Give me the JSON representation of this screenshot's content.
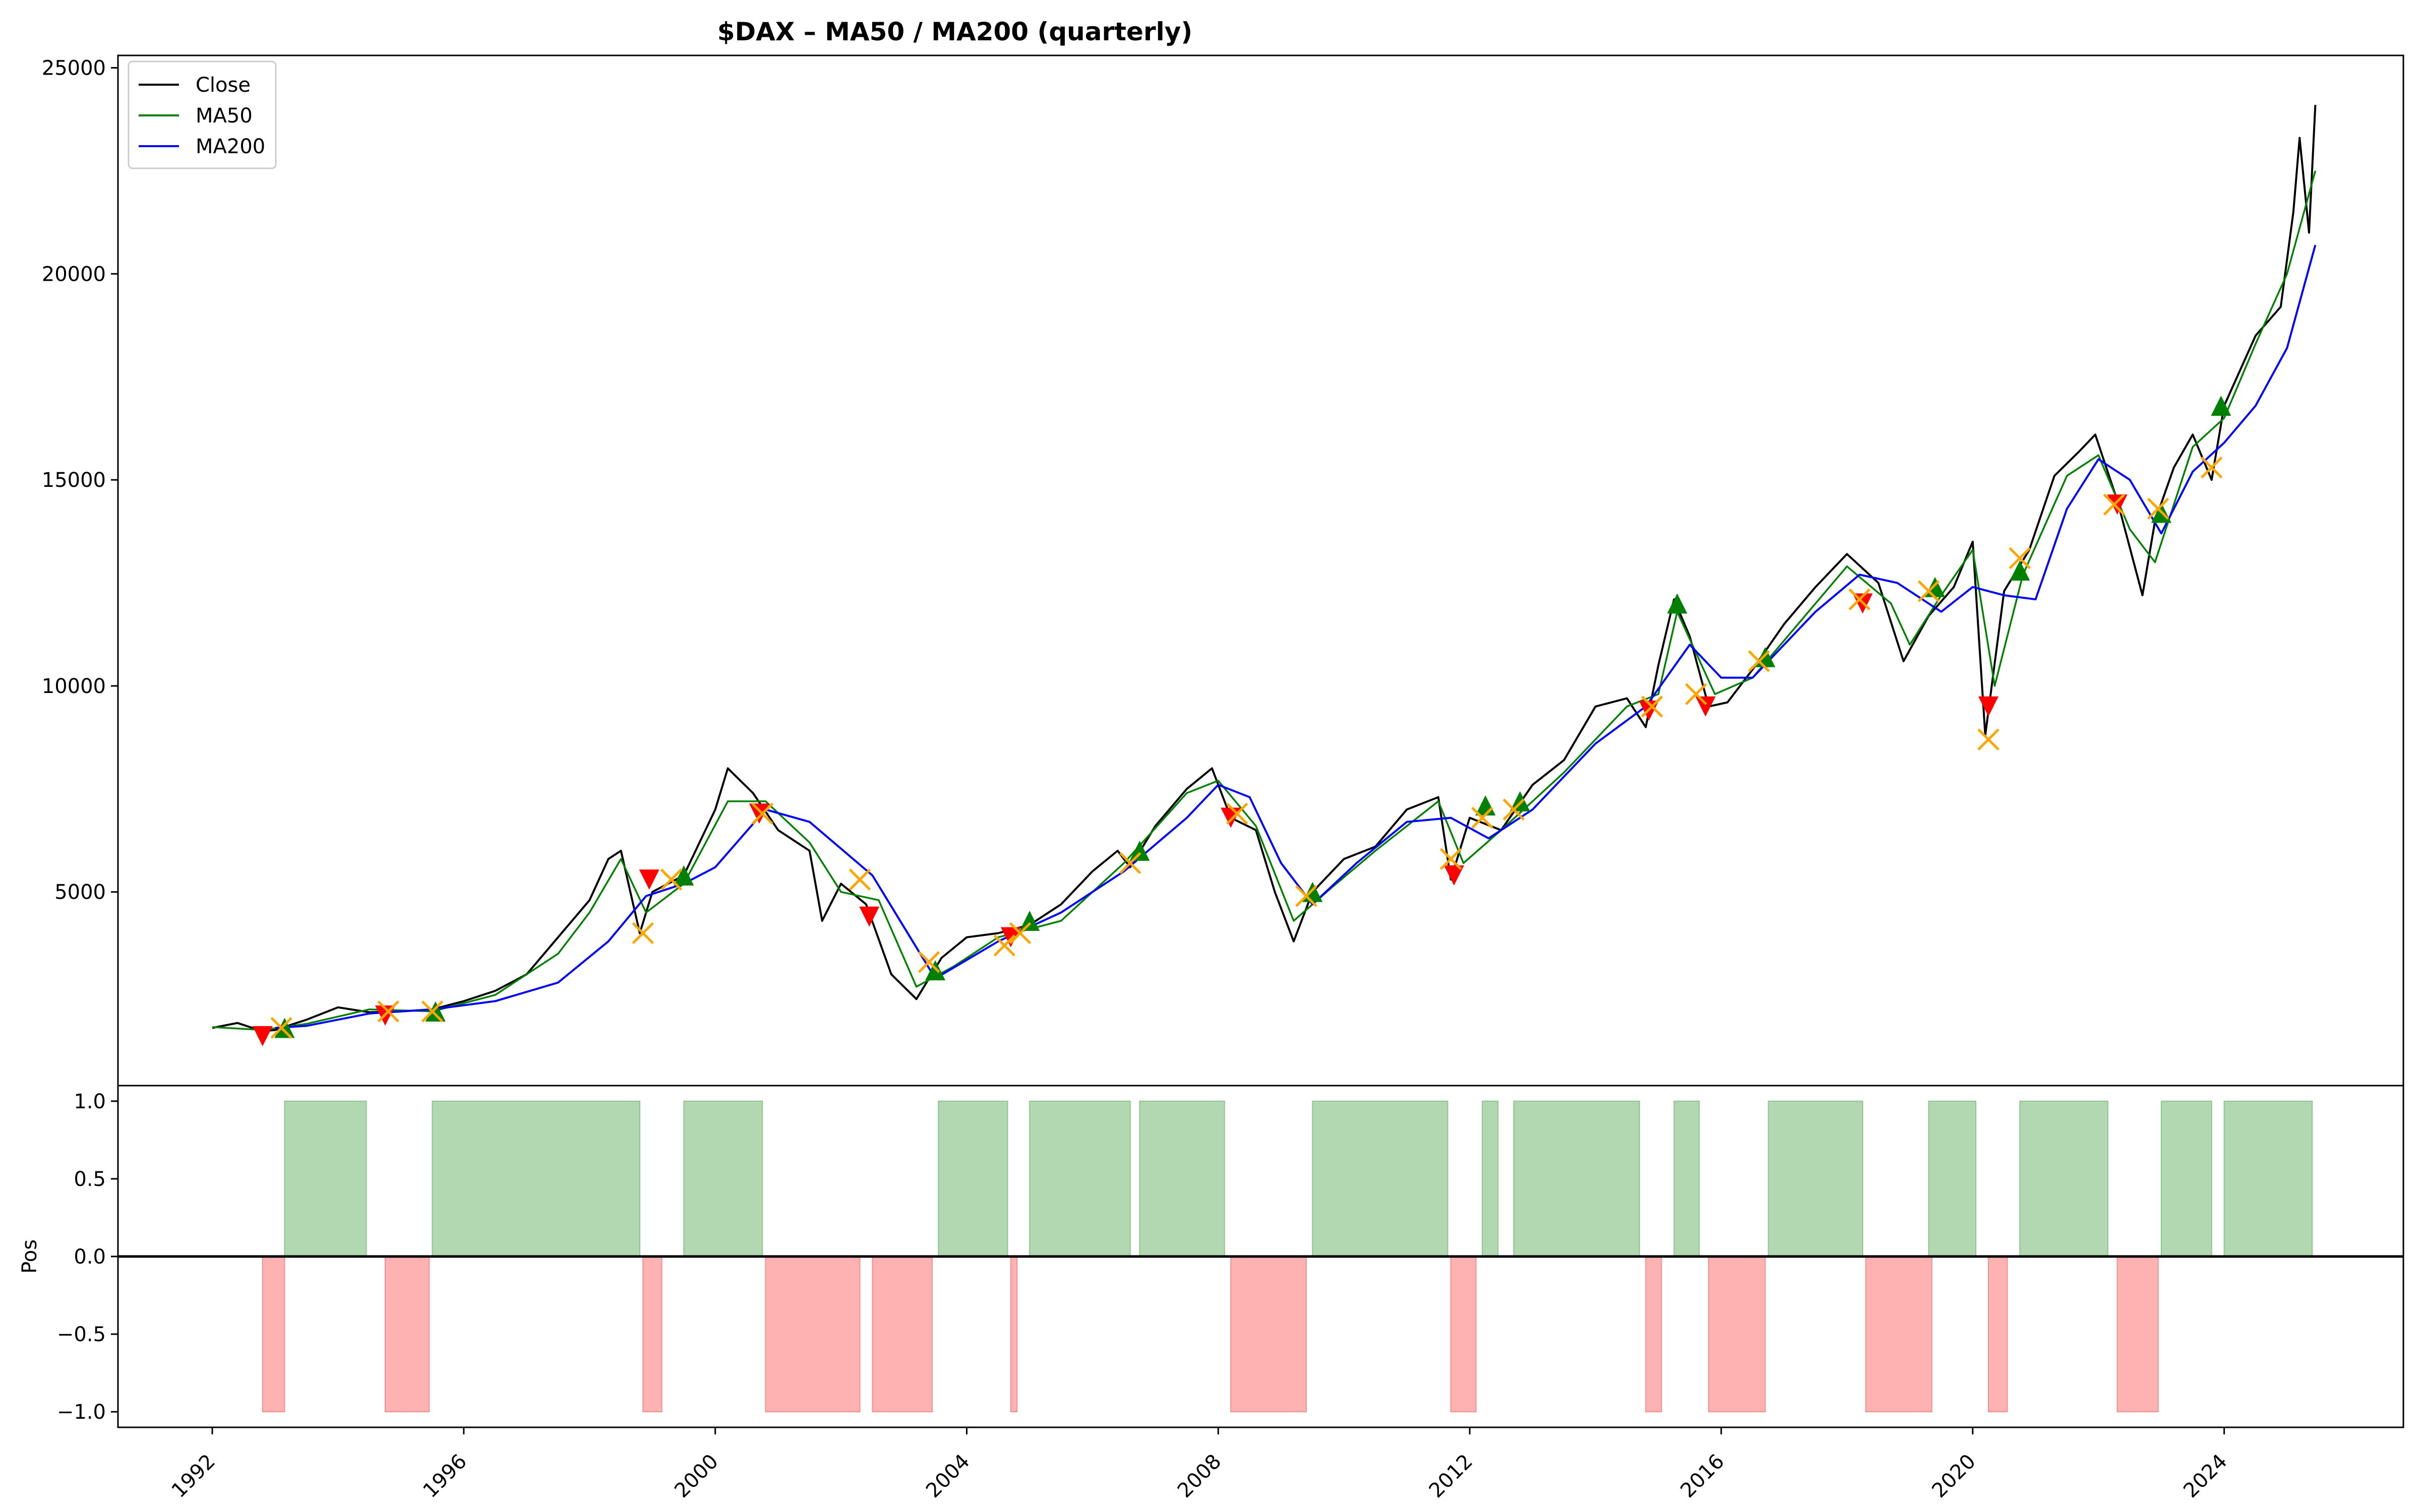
{
  "chart_data": [
    {
      "type": "line",
      "title": "$DAX – MA50 / MA200 (quarterly)",
      "xlabel": "",
      "ylabel": "",
      "xlim": [
        1990.5,
        2026.85
      ],
      "ylim": [
        300,
        25300
      ],
      "x_ticks": [
        1992,
        1996,
        2000,
        2004,
        2008,
        2012,
        2016,
        2020,
        2024
      ],
      "x_tick_labels": [
        "1992",
        "1996",
        "2000",
        "2004",
        "2008",
        "2012",
        "2016",
        "2020",
        "2024"
      ],
      "y_ticks": [
        5000,
        10000,
        15000,
        20000,
        25000
      ],
      "y_tick_labels": [
        "5000",
        "10000",
        "15000",
        "20000",
        "25000"
      ],
      "legend": {
        "placement": "top-left",
        "entries": [
          "Close",
          "MA50",
          "MA200"
        ]
      },
      "grid": false,
      "series": [
        {
          "name": "Close",
          "color": "#000000",
          "x": [
            1992.0,
            1992.4,
            1992.8,
            1993.0,
            1993.5,
            1994.0,
            1994.5,
            1995.0,
            1995.5,
            1996.0,
            1996.5,
            1997.0,
            1997.5,
            1998.0,
            1998.3,
            1998.5,
            1998.8,
            1999.0,
            1999.5,
            2000.0,
            2000.2,
            2000.6,
            2001.0,
            2001.5,
            2001.7,
            2002.0,
            2002.4,
            2002.8,
            2003.2,
            2003.6,
            2004.0,
            2004.5,
            2005.0,
            2005.5,
            2006.0,
            2006.4,
            2006.6,
            2007.0,
            2007.5,
            2007.9,
            2008.2,
            2008.6,
            2008.9,
            2009.2,
            2009.5,
            2010.0,
            2010.5,
            2011.0,
            2011.5,
            2011.7,
            2012.0,
            2012.5,
            2013.0,
            2013.5,
            2014.0,
            2014.5,
            2014.8,
            2015.0,
            2015.25,
            2015.5,
            2015.8,
            2016.1,
            2016.5,
            2017.0,
            2017.5,
            2018.0,
            2018.5,
            2018.9,
            2019.3,
            2019.7,
            2020.0,
            2020.2,
            2020.5,
            2020.9,
            2021.3,
            2021.7,
            2021.95,
            2022.3,
            2022.7,
            2022.9,
            2023.2,
            2023.5,
            2023.8,
            2024.0,
            2024.5,
            2024.9,
            2025.1,
            2025.2,
            2025.35,
            2025.45
          ],
          "y": [
            1700,
            1820,
            1620,
            1650,
            1900,
            2200,
            2080,
            2100,
            2150,
            2350,
            2600,
            3000,
            3900,
            4800,
            5800,
            6000,
            4000,
            5000,
            5400,
            7000,
            8000,
            7400,
            6500,
            6000,
            4300,
            5200,
            4700,
            3000,
            2400,
            3400,
            3900,
            4000,
            4200,
            4700,
            5500,
            6000,
            5600,
            6600,
            7500,
            8000,
            6800,
            6500,
            5000,
            3800,
            5000,
            5800,
            6100,
            7000,
            7300,
            5300,
            6800,
            6500,
            7600,
            8200,
            9500,
            9700,
            9000,
            10500,
            12100,
            11200,
            9500,
            9600,
            10400,
            11500,
            12400,
            13200,
            12500,
            10600,
            11700,
            12400,
            13500,
            8800,
            12300,
            13300,
            15100,
            15700,
            16100,
            14500,
            12200,
            14000,
            15300,
            16100,
            15000,
            16800,
            18500,
            19200,
            21500,
            23300,
            21000,
            24100
          ]
        },
        {
          "name": "MA50",
          "color": "#008000",
          "x": [
            1992.0,
            1992.8,
            1993.5,
            1994.5,
            1995.5,
            1996.5,
            1997.5,
            1998.0,
            1998.5,
            1998.9,
            1999.5,
            2000.2,
            2000.8,
            2001.5,
            2002.0,
            2002.6,
            2003.2,
            2003.8,
            2004.5,
            2005.5,
            2006.5,
            2007.5,
            2008.0,
            2008.6,
            2009.2,
            2009.8,
            2010.5,
            2011.5,
            2011.9,
            2012.5,
            2013.5,
            2014.5,
            2015.0,
            2015.3,
            2015.9,
            2016.5,
            2017.5,
            2018.0,
            2018.7,
            2019.0,
            2019.5,
            2020.0,
            2020.35,
            2020.8,
            2021.5,
            2022.0,
            2022.5,
            2022.9,
            2023.5,
            2024.0,
            2024.5,
            2025.0,
            2025.45
          ],
          "y": [
            1720,
            1650,
            1800,
            2150,
            2100,
            2500,
            3500,
            4500,
            5800,
            4500,
            5200,
            7200,
            7200,
            6200,
            5000,
            4800,
            2700,
            3200,
            3900,
            4300,
            5700,
            7400,
            7700,
            6600,
            4300,
            5100,
            6000,
            7200,
            5700,
            6500,
            7900,
            9500,
            9800,
            11800,
            9800,
            10200,
            12000,
            12900,
            12000,
            11000,
            12200,
            13300,
            10000,
            12700,
            15100,
            15600,
            13800,
            13000,
            15800,
            16500,
            18300,
            20000,
            22500
          ]
        },
        {
          "name": "MA200",
          "color": "#0000ff",
          "x": [
            1993.0,
            1993.5,
            1994.5,
            1995.5,
            1996.5,
            1997.5,
            1998.3,
            1998.9,
            1999.5,
            2000.0,
            2000.8,
            2001.5,
            2002.5,
            2003.5,
            2004.5,
            2005.5,
            2006.5,
            2007.5,
            2008.0,
            2008.5,
            2009.0,
            2009.5,
            2010.2,
            2011.0,
            2011.7,
            2012.3,
            2013.0,
            2014.0,
            2014.8,
            2015.5,
            2016.0,
            2016.5,
            2017.5,
            2018.2,
            2018.8,
            2019.5,
            2020.0,
            2020.5,
            2021.0,
            2021.5,
            2022.0,
            2022.5,
            2023.0,
            2023.5,
            2024.0,
            2024.5,
            2025.0,
            2025.45
          ],
          "y": [
            1700,
            1750,
            2050,
            2150,
            2350,
            2800,
            3800,
            4900,
            5200,
            5600,
            7000,
            6700,
            5400,
            2900,
            3800,
            4500,
            5500,
            6800,
            7600,
            7300,
            5700,
            4700,
            5700,
            6700,
            6800,
            6300,
            7000,
            8600,
            9500,
            11000,
            10200,
            10200,
            11800,
            12700,
            12500,
            11800,
            12400,
            12200,
            12100,
            14300,
            15500,
            15000,
            13700,
            15200,
            15900,
            16800,
            18200,
            20700
          ]
        }
      ],
      "markers": [
        {
          "name": "buy",
          "symbol": "triangle-up",
          "color": "#008000",
          "x": [
            1993.15,
            1995.55,
            1999.5,
            2003.5,
            2005.0,
            2006.75,
            2009.5,
            2012.25,
            2012.8,
            2015.3,
            2016.7,
            2019.4,
            2020.75,
            2023.0,
            2023.95
          ],
          "y": [
            1700,
            2100,
            5400,
            3100,
            4300,
            6000,
            5000,
            7100,
            7200,
            12000,
            10700,
            12400,
            12800,
            14200,
            16800
          ]
        },
        {
          "name": "sell",
          "symbol": "triangle-down",
          "color": "#ff0000",
          "x": [
            1992.8,
            1994.75,
            1998.95,
            2000.7,
            2002.45,
            2004.7,
            2008.2,
            2011.75,
            2014.85,
            2015.75,
            2018.25,
            2020.25,
            2022.3
          ],
          "y": [
            1500,
            2000,
            5300,
            6900,
            4400,
            3900,
            6800,
            5400,
            9400,
            9500,
            12000,
            9500,
            14400
          ]
        },
        {
          "name": "exit",
          "symbol": "x",
          "color": "#ffa500",
          "x": [
            1993.1,
            1994.8,
            1995.5,
            1998.85,
            1999.3,
            2000.75,
            2002.3,
            2003.4,
            2004.6,
            2004.85,
            2006.6,
            2008.3,
            2009.4,
            2011.7,
            2012.2,
            2012.7,
            2014.9,
            2015.6,
            2016.6,
            2018.2,
            2019.3,
            2020.25,
            2020.75,
            2022.25,
            2022.95,
            2023.8
          ],
          "y": [
            1700,
            2100,
            2100,
            4000,
            5300,
            6900,
            5300,
            3300,
            3700,
            4000,
            5700,
            6900,
            4900,
            5800,
            6800,
            7000,
            9500,
            9800,
            10600,
            12100,
            12300,
            8700,
            13100,
            14400,
            14300,
            15300
          ]
        }
      ]
    },
    {
      "type": "area",
      "ylabel": "Pos",
      "xlim": [
        1990.5,
        2026.85
      ],
      "ylim": [
        -1.1,
        1.1
      ],
      "y_ticks": [
        -1.0,
        -0.5,
        0.0,
        0.5,
        1.0
      ],
      "y_tick_labels": [
        "−1.0",
        "−0.5",
        "0.0",
        "0.5",
        "1.0"
      ],
      "long_color": "#b2d8b2",
      "short_color": "#ffb2b2",
      "long_periods": [
        [
          1993.15,
          1994.45
        ],
        [
          1995.5,
          1998.8
        ],
        [
          1999.5,
          2000.75
        ],
        [
          2003.55,
          2004.65
        ],
        [
          2005.0,
          2006.6
        ],
        [
          2006.75,
          2008.1
        ],
        [
          2009.5,
          2011.65
        ],
        [
          2012.2,
          2012.45
        ],
        [
          2012.7,
          2014.7
        ],
        [
          2015.25,
          2015.65
        ],
        [
          2016.75,
          2018.25
        ],
        [
          2019.3,
          2020.05
        ],
        [
          2020.75,
          2022.15
        ],
        [
          2023.0,
          2023.8
        ],
        [
          2024.0,
          2025.4
        ]
      ],
      "short_periods": [
        [
          1992.8,
          1993.15
        ],
        [
          1994.75,
          1995.45
        ],
        [
          1998.85,
          1999.15
        ],
        [
          2000.8,
          2002.3
        ],
        [
          2002.5,
          2003.45
        ],
        [
          2004.7,
          2004.8
        ],
        [
          2008.2,
          2009.4
        ],
        [
          2011.7,
          2012.1
        ],
        [
          2014.8,
          2015.05
        ],
        [
          2015.8,
          2016.7
        ],
        [
          2018.3,
          2019.35
        ],
        [
          2020.25,
          2020.55
        ],
        [
          2022.3,
          2022.95
        ]
      ]
    }
  ]
}
